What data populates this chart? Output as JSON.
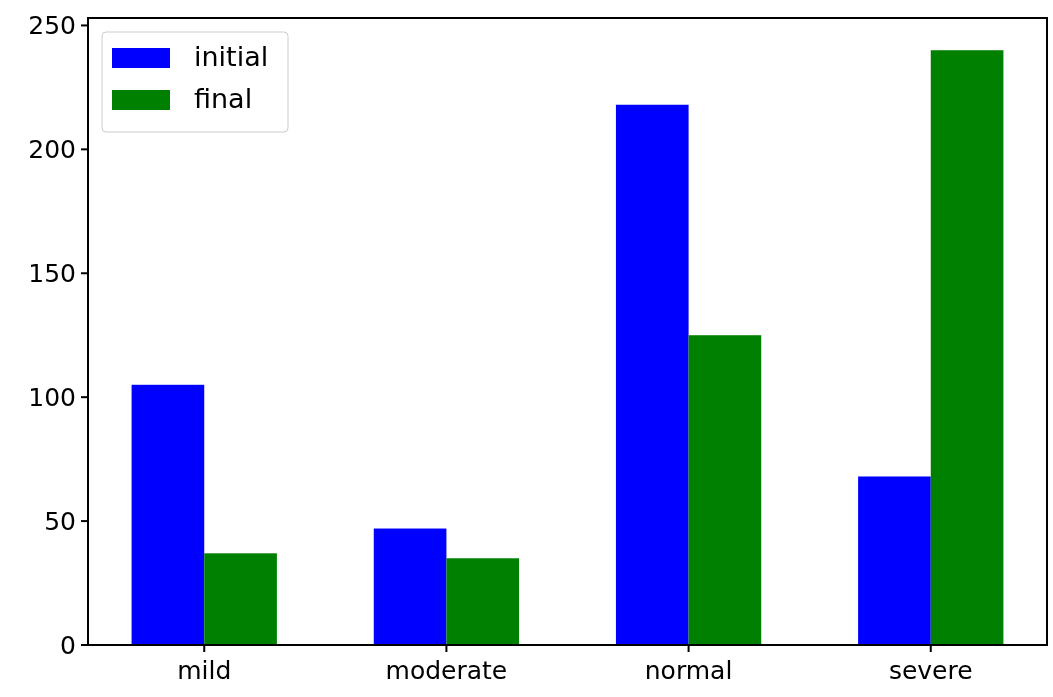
{
  "chart_data": {
    "type": "bar",
    "categories": [
      "mild",
      "moderate",
      "normal",
      "severe"
    ],
    "series": [
      {
        "name": "initial",
        "color": "#0000ff",
        "values": [
          105,
          47,
          218,
          68
        ]
      },
      {
        "name": "final",
        "color": "#008000",
        "values": [
          37,
          35,
          125,
          240
        ]
      }
    ],
    "ylim": [
      0,
      253
    ],
    "yticks": [
      0,
      50,
      100,
      150,
      200,
      250
    ],
    "legend": "top left",
    "grid": false
  }
}
